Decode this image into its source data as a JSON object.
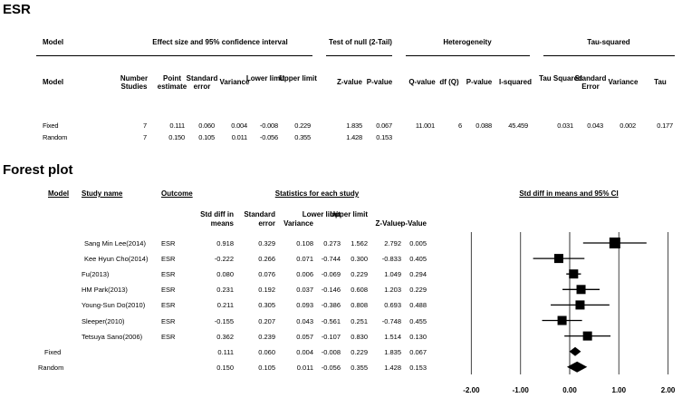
{
  "esr": {
    "title": "ESR",
    "group_headers": {
      "model": "Model",
      "effect": "Effect size and 95% confidence interval",
      "null_test": "Test of null (2-Tail)",
      "heterogeneity": "Heterogeneity",
      "tau": "Tau-squared"
    },
    "columns": [
      "Model",
      "Number Studies",
      "Point estimate",
      "Standard error",
      "Variance",
      "Lower limit",
      "Upper limit",
      "Z-value",
      "P-value",
      "Q-value",
      "df (Q)",
      "P-value",
      "I-squared",
      "Tau Squared",
      "Standard Error",
      "Variance",
      "Tau"
    ],
    "rows": [
      [
        "Fixed",
        "7",
        "0.111",
        "0.060",
        "0.004",
        "-0.008",
        "0.229",
        "1.835",
        "0.067",
        "11.001",
        "6",
        "0.088",
        "45.459",
        "0.031",
        "0.043",
        "0.002",
        "0.177"
      ],
      [
        "Random",
        "7",
        "0.150",
        "0.105",
        "0.011",
        "-0.056",
        "0.355",
        "1.428",
        "0.153",
        "",
        "",
        "",
        "",
        "",
        "",
        "",
        ""
      ]
    ]
  },
  "forest": {
    "title": "Forest plot",
    "headers": {
      "model": "Model",
      "study": "Study name",
      "outcome": "Outcome",
      "stats": "Statistics for each study",
      "plot": "Std diff in means and 95% CI"
    },
    "stat_columns": [
      "Std diff in means",
      "Standard error",
      "Variance",
      "Lower limit",
      "Upper limit",
      "Z-Value",
      "p-Value"
    ],
    "rows": [
      {
        "model": "",
        "study": "Sang Min Lee(2014)",
        "outcome": "ESR",
        "values": [
          "0.918",
          "0.329",
          "0.108",
          "0.273",
          "1.562",
          "2.792",
          "0.005"
        ]
      },
      {
        "model": "",
        "study": "Kee Hyun Cho(2014)",
        "outcome": "ESR",
        "values": [
          "-0.222",
          "0.266",
          "0.071",
          "-0.744",
          "0.300",
          "-0.833",
          "0.405"
        ]
      },
      {
        "model": "",
        "study": "Fu(2013)",
        "outcome": "ESR",
        "values": [
          "0.080",
          "0.076",
          "0.006",
          "-0.069",
          "0.229",
          "1.049",
          "0.294"
        ]
      },
      {
        "model": "",
        "study": "HM Park(2013)",
        "outcome": "ESR",
        "values": [
          "0.231",
          "0.192",
          "0.037",
          "-0.146",
          "0.608",
          "1.203",
          "0.229"
        ]
      },
      {
        "model": "",
        "study": "Young-Sun Do(2010)",
        "outcome": "ESR",
        "values": [
          "0.211",
          "0.305",
          "0.093",
          "-0.386",
          "0.808",
          "0.693",
          "0.488"
        ]
      },
      {
        "model": "",
        "study": "Sleeper(2010)",
        "outcome": "ESR",
        "values": [
          "-0.155",
          "0.207",
          "0.043",
          "-0.561",
          "0.251",
          "-0.748",
          "0.455"
        ]
      },
      {
        "model": "",
        "study": "Tetsuya Sano(2006)",
        "outcome": "ESR",
        "values": [
          "0.362",
          "0.239",
          "0.057",
          "-0.107",
          "0.830",
          "1.514",
          "0.130"
        ]
      },
      {
        "model": "Fixed",
        "study": "",
        "outcome": "",
        "values": [
          "0.111",
          "0.060",
          "0.004",
          "-0.008",
          "0.229",
          "1.835",
          "0.067"
        ]
      },
      {
        "model": "Random",
        "study": "",
        "outcome": "",
        "values": [
          "0.150",
          "0.105",
          "0.011",
          "-0.056",
          "0.355",
          "1.428",
          "0.153"
        ]
      }
    ]
  },
  "chart_data": {
    "type": "forest",
    "title": "Std diff in means and 95% CI",
    "xlim": [
      -2,
      2
    ],
    "x_ticks": [
      "-2.00",
      "-1.00",
      "0.00",
      "1.00",
      "2.00"
    ],
    "gridlines": [
      -2,
      -1,
      0,
      1,
      2
    ],
    "studies": [
      {
        "name": "Sang Min Lee(2014)",
        "estimate": 0.918,
        "lower": 0.273,
        "upper": 1.562,
        "weight": "large"
      },
      {
        "name": "Kee Hyun Cho(2014)",
        "estimate": -0.222,
        "lower": -0.744,
        "upper": 0.3
      },
      {
        "name": "Fu(2013)",
        "estimate": 0.08,
        "lower": -0.069,
        "upper": 0.229
      },
      {
        "name": "HM Park(2013)",
        "estimate": 0.231,
        "lower": -0.146,
        "upper": 0.608
      },
      {
        "name": "Young-Sun Do(2010)",
        "estimate": 0.211,
        "lower": -0.386,
        "upper": 0.808
      },
      {
        "name": "Sleeper(2010)",
        "estimate": -0.155,
        "lower": -0.561,
        "upper": 0.251
      },
      {
        "name": "Tetsuya Sano(2006)",
        "estimate": 0.362,
        "lower": -0.107,
        "upper": 0.83
      }
    ],
    "summary": [
      {
        "name": "Fixed",
        "estimate": 0.111,
        "lower": -0.008,
        "upper": 0.229
      },
      {
        "name": "Random",
        "estimate": 0.15,
        "lower": -0.056,
        "upper": 0.355
      }
    ]
  }
}
